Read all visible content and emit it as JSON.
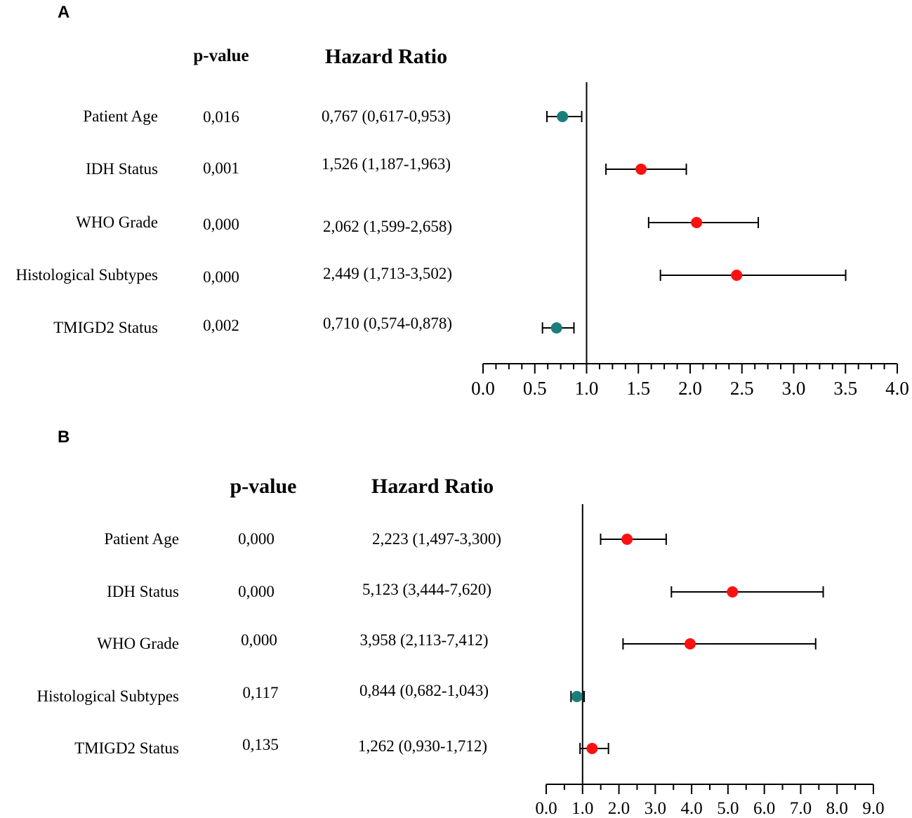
{
  "chart_data": [
    {
      "type": "forest",
      "panel_label": "A",
      "pvalue_header": "p-value",
      "hr_header": "Hazard Ratio",
      "reference_line": 1.0,
      "xlim": [
        0.0,
        4.0
      ],
      "tick_labels": [
        "0.0",
        "0.5",
        "1.0",
        "1.5",
        "2.0",
        "2.5",
        "3.0",
        "3.5",
        "4.0"
      ],
      "rows": [
        {
          "label": "Patient Age",
          "p_value": "0,016",
          "hr_text": "0,767 (0,617-0,953)",
          "hr": 0.767,
          "lower": 0.617,
          "upper": 0.953,
          "color": "#1a7f7a"
        },
        {
          "label": "IDH Status",
          "p_value": "0,001",
          "hr_text": "1,526 (1,187-1,963)",
          "hr": 1.526,
          "lower": 1.187,
          "upper": 1.963,
          "color": "#ff1010"
        },
        {
          "label": "WHO Grade",
          "p_value": "0,000",
          "hr_text": "2,062 (1,599-2,658)",
          "hr": 2.062,
          "lower": 1.599,
          "upper": 2.658,
          "color": "#ff1010"
        },
        {
          "label": "Histological Subtypes",
          "p_value": "0,000",
          "hr_text": "2,449 (1,713-3,502)",
          "hr": 2.449,
          "lower": 1.713,
          "upper": 3.502,
          "color": "#ff1010"
        },
        {
          "label": "TMIGD2 Status",
          "p_value": "0,002",
          "hr_text": "0,710 (0,574-0,878)",
          "hr": 0.71,
          "lower": 0.574,
          "upper": 0.878,
          "color": "#1a7f7a"
        }
      ]
    },
    {
      "type": "forest",
      "panel_label": "B",
      "pvalue_header": "p-value",
      "hr_header": "Hazard Ratio",
      "reference_line": 1.0,
      "xlim": [
        0.0,
        9.0
      ],
      "tick_labels": [
        "0.0",
        "1.0",
        "2.0",
        "3.0",
        "4.0",
        "5.0",
        "6.0",
        "7.0",
        "8.0",
        "9.0"
      ],
      "rows": [
        {
          "label": "Patient Age",
          "p_value": "0,000",
          "hr_text": "2,223 (1,497-3,300)",
          "hr": 2.223,
          "lower": 1.497,
          "upper": 3.3,
          "color": "#ff1010"
        },
        {
          "label": "IDH Status",
          "p_value": "0,000",
          "hr_text": "5,123 (3,444-7,620)",
          "hr": 5.123,
          "lower": 3.444,
          "upper": 7.62,
          "color": "#ff1010"
        },
        {
          "label": "WHO Grade",
          "p_value": "0,000",
          "hr_text": "3,958 (2,113-7,412)",
          "hr": 3.958,
          "lower": 2.113,
          "upper": 7.412,
          "color": "#ff1010"
        },
        {
          "label": "Histological Subtypes",
          "p_value": "0,117",
          "hr_text": "0,844 (0,682-1,043)",
          "hr": 0.844,
          "lower": 0.682,
          "upper": 1.043,
          "color": "#1a7f7a"
        },
        {
          "label": "TMIGD2 Status",
          "p_value": "0,135",
          "hr_text": "1,262 (0,930-1,712)",
          "hr": 1.262,
          "lower": 0.93,
          "upper": 1.712,
          "color": "#ff1010"
        }
      ]
    }
  ]
}
